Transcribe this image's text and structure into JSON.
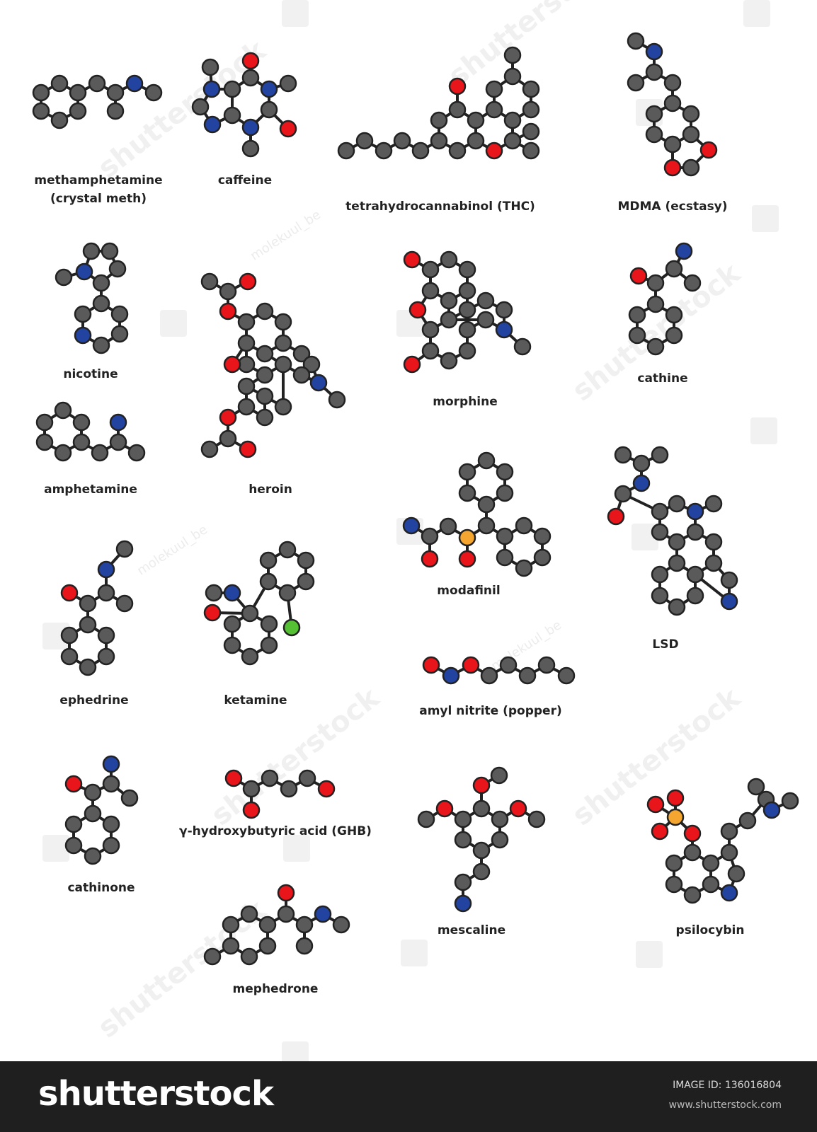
{
  "molecules": [
    {
      "name": "methamphetamine\n(crystal meth)"
    },
    {
      "name": "caffeine"
    },
    {
      "name": "tetrahydrocannabinol (THC)"
    },
    {
      "name": "MDMA (ecstasy)"
    },
    {
      "name": "nicotine"
    },
    {
      "name": "heroin"
    },
    {
      "name": "morphine"
    },
    {
      "name": "cathine"
    },
    {
      "name": "amphetamine"
    },
    {
      "name": "modafinil"
    },
    {
      "name": "LSD"
    },
    {
      "name": "ephedrine"
    },
    {
      "name": "ketamine"
    },
    {
      "name": "amyl nitrite (popper)"
    },
    {
      "name": "cathinone"
    },
    {
      "name": "γ-hydroxybutyric acid (GHB)"
    },
    {
      "name": "mescaline"
    },
    {
      "name": "psilocybin"
    },
    {
      "name": "mephedrone"
    }
  ],
  "atom_colors": {
    "C": "#5a5a5a",
    "O": "#e8161b",
    "N": "#2343a0",
    "S": "#f4a630",
    "P": "#f4a630",
    "Cl": "#55c033"
  },
  "watermark": {
    "brand": "shutterstock",
    "contributor": "molekuul_be"
  },
  "footer": {
    "brand": "shutterstock",
    "image_id": "IMAGE ID: 136016804",
    "site": "www.shutterstock.com"
  }
}
